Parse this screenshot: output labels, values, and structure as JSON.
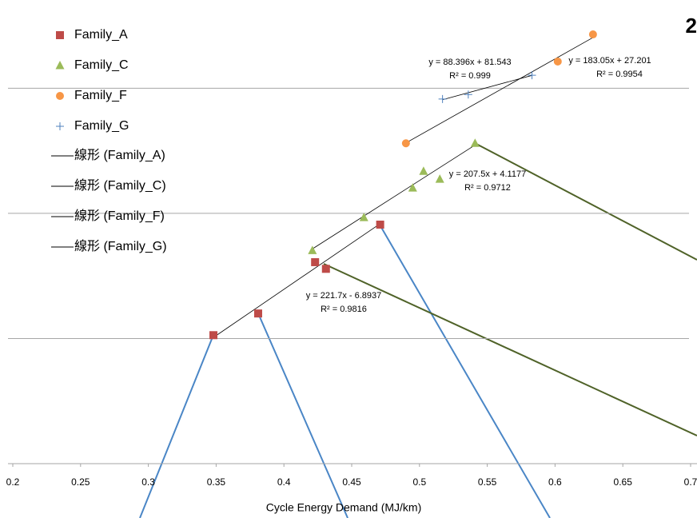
{
  "chart_data": {
    "type": "scatter",
    "x_label": "Cycle Energy Demand (MJ/km)",
    "annotations": [
      "2"
    ],
    "xlim": [
      0.2,
      0.7
    ],
    "xticks": [
      0.2,
      0.25,
      0.3,
      0.35,
      0.4,
      0.45,
      0.5,
      0.55,
      0.6,
      0.65,
      0.7
    ],
    "ylim": [
      40,
      150
    ],
    "yticks": [
      40,
      70,
      100,
      130
    ],
    "grid": true,
    "legend": "top-left",
    "series": [
      {
        "name": "Family_A",
        "color": "#be4b48",
        "marker": "square",
        "x": [
          0.348,
          0.381,
          0.423,
          0.431,
          0.471
        ],
        "values": [
          70.8,
          76.0,
          88.3,
          86.7,
          97.3
        ],
        "trendline": {
          "name": "線形 (Family_A)",
          "slope": 221.7,
          "intercept": -6.8937,
          "equation": "y = 221.7x - 6.8937",
          "r_squared": "R² = 0.9816"
        }
      },
      {
        "name": "Family_C",
        "color": "#9bbb59",
        "marker": "triangle",
        "x": [
          0.421,
          0.459,
          0.495,
          0.503,
          0.515,
          0.541
        ],
        "values": [
          91.1,
          99.0,
          106.1,
          110.1,
          108.2,
          116.8
        ],
        "trendline": {
          "name": "線形 (Family_C)",
          "slope": 207.5,
          "intercept": 4.1177,
          "equation": "y = 207.5x + 4.1177",
          "r_squared": "R² = 0.9712"
        }
      },
      {
        "name": "Family_F",
        "color": "#f79646",
        "marker": "circle",
        "x": [
          0.49,
          0.602,
          0.628
        ],
        "values": [
          116.8,
          136.4,
          142.9
        ],
        "trendline": {
          "name": "線形 (Family_F)",
          "slope": 183.05,
          "intercept": 27.201,
          "equation": "y = 183.05x + 27.201",
          "r_squared": "R² = 0.9954"
        }
      },
      {
        "name": "Family_G",
        "color": "#4f81bd",
        "marker": "plus",
        "x": [
          0.517,
          0.536,
          0.583
        ],
        "values": [
          127.4,
          128.5,
          133.1
        ],
        "trendline": {
          "name": "線形 (Family_G)",
          "slope": 88.396,
          "intercept": 81.543,
          "equation": "y = 88.396x + 81.543",
          "r_squared": "R² = 0.999"
        }
      }
    ]
  }
}
